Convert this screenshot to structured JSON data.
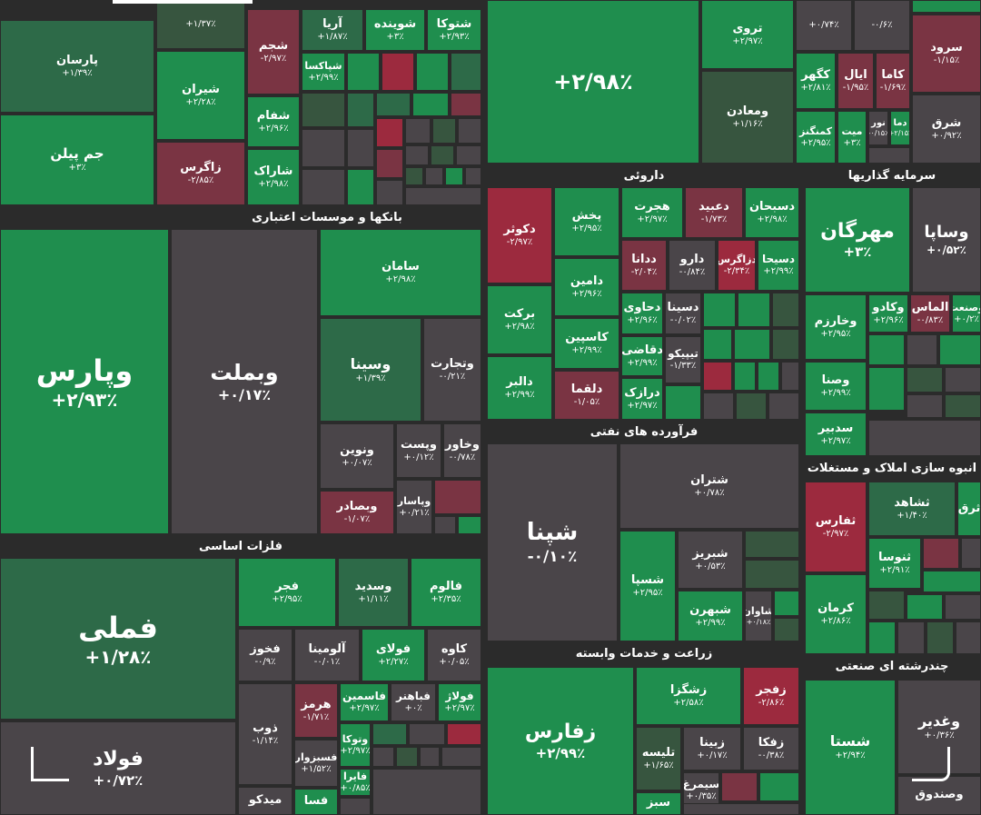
{
  "sectors": {
    "banks": "بانکها و موسسات اعتباری",
    "metals": "فلزات اساسی",
    "pharma": "داروئی",
    "oil": "فرآورده های نفتی",
    "agri": "زراعت و خدمات وابسته",
    "invest": "سرمایه گذاریها",
    "realestate": "انبوه سازی املاک و مستغلات",
    "multi": "چندرشته ای صنعتی"
  },
  "tiles": [
    {
      "name": "",
      "pct": "+۱/۳۷٪"
    },
    {
      "name": "پارسان",
      "pct": "+۱/۳۹٪"
    },
    {
      "name": "شیران",
      "pct": "+۲/۲۸٪"
    },
    {
      "name": "جم پیلن",
      "pct": "+۳٪"
    },
    {
      "name": "زاگرس",
      "pct": "-۲/۸۵٪"
    },
    {
      "name": "شجم",
      "pct": "-۲/۹۷٪"
    },
    {
      "name": "شفام",
      "pct": "+۲/۹۶٪"
    },
    {
      "name": "شاراک",
      "pct": "+۲/۹۸٪"
    },
    {
      "name": "آریا",
      "pct": "+۱/۸۷٪"
    },
    {
      "name": "شوینده",
      "pct": "+۳٪"
    },
    {
      "name": "شتوکا",
      "pct": "+۲/۹۳٪"
    },
    {
      "name": "شپاکسا",
      "pct": "+۲/۹۹٪"
    },
    {
      "name": "وپارس",
      "pct": "+۲/۹۳٪"
    },
    {
      "name": "وبملت",
      "pct": "+۰/۱۷٪"
    },
    {
      "name": "سامان",
      "pct": "+۲/۹۸٪"
    },
    {
      "name": "وسینا",
      "pct": "+۱/۳۹٪"
    },
    {
      "name": "وتجارت",
      "pct": "-۰/۲۱٪"
    },
    {
      "name": "ونوین",
      "pct": "+۰/۰۷٪"
    },
    {
      "name": "وپست",
      "pct": "+۰/۱۲٪"
    },
    {
      "name": "وخاور",
      "pct": "-۰/۷۸٪"
    },
    {
      "name": "وبصادر",
      "pct": "-۱/۰۷٪"
    },
    {
      "name": "وپاسار",
      "pct": "+۰/۲۱٪"
    },
    {
      "name": "فملی",
      "pct": "+۱/۲۸٪"
    },
    {
      "name": "فجر",
      "pct": "+۲/۹۵٪"
    },
    {
      "name": "وسدید",
      "pct": "+۱/۱۱٪"
    },
    {
      "name": "فالوم",
      "pct": "+۲/۳۵٪"
    },
    {
      "name": "فخوز",
      "pct": "-۰/۹٪"
    },
    {
      "name": "آلومینا",
      "pct": "-۰/۰۱٪"
    },
    {
      "name": "فولای",
      "pct": "+۲/۲۷٪"
    },
    {
      "name": "کاوه",
      "pct": "+۰/۰۵٪"
    },
    {
      "name": "هرمز",
      "pct": "-۱/۷۱٪"
    },
    {
      "name": "فاسمین",
      "pct": "+۲/۹۷٪"
    },
    {
      "name": "فباهنر",
      "pct": "+۰٪"
    },
    {
      "name": "فولاژ",
      "pct": "+۲/۹۷٪"
    },
    {
      "name": "فولاد",
      "pct": "+۰/۷۲٪"
    },
    {
      "name": "ذوب",
      "pct": "-۱/۱۴٪"
    },
    {
      "name": "فسبزوار",
      "pct": "+۱/۵۲٪"
    },
    {
      "name": "وتوکا",
      "pct": "+۲/۹۷٪"
    },
    {
      "name": "فایرا",
      "pct": "+۰/۸۵٪"
    },
    {
      "name": "میدکو",
      "pct": ""
    },
    {
      "name": "فسا",
      "pct": ""
    },
    {
      "name": "",
      "pct": "+۲/۹۸٪"
    },
    {
      "name": "تروی",
      "pct": "+۲/۹۷٪"
    },
    {
      "name": "ومعادن",
      "pct": "+۱/۱۶٪"
    },
    {
      "name": "",
      "pct": "+۰/۷۴٪"
    },
    {
      "name": "",
      "pct": "-۰/۶٪"
    },
    {
      "name": "سرود",
      "pct": "-۱/۱۵٪"
    },
    {
      "name": "کگهر",
      "pct": "+۲/۸۱٪"
    },
    {
      "name": "ایال",
      "pct": "-۱/۹۵٪"
    },
    {
      "name": "کاما",
      "pct": "-۱/۶۹٪"
    },
    {
      "name": "کمنگنز",
      "pct": "+۲/۹۵٪"
    },
    {
      "name": "میت",
      "pct": "+۳٪"
    },
    {
      "name": "نور",
      "pct": "-۰/۱۵٪"
    },
    {
      "name": "دما",
      "pct": "+۲/۱۵٪"
    },
    {
      "name": "شرق",
      "pct": "+۰/۹۲٪"
    },
    {
      "name": "دسبحان",
      "pct": "+۲/۹۸٪"
    },
    {
      "name": "دعبید",
      "pct": "-۱/۷۳٪"
    },
    {
      "name": "هجرت",
      "pct": "+۲/۹۷٪"
    },
    {
      "name": "پخش",
      "pct": "+۲/۹۵٪"
    },
    {
      "name": "دکوثر",
      "pct": "-۲/۹۷٪"
    },
    {
      "name": "دسیحا",
      "pct": "+۲/۹۹٪"
    },
    {
      "name": "دزاگرس",
      "pct": "-۲/۳۴٪"
    },
    {
      "name": "دارو",
      "pct": "-۰/۸۴٪"
    },
    {
      "name": "ددانا",
      "pct": "-۲/۰۴٪"
    },
    {
      "name": "دامین",
      "pct": "+۲/۹۶٪"
    },
    {
      "name": "برکت",
      "pct": "+۲/۹۸٪"
    },
    {
      "name": "دحاوی",
      "pct": "+۲/۹۶٪"
    },
    {
      "name": "دسینا",
      "pct": "-۰/۰۲٪"
    },
    {
      "name": "کاسپین",
      "pct": "+۲/۹۹٪"
    },
    {
      "name": "دقاضی",
      "pct": "+۲/۹۹٪"
    },
    {
      "name": "تیپیکو",
      "pct": "-۱/۳۳٪"
    },
    {
      "name": "دالبر",
      "pct": "+۲/۹۹٪"
    },
    {
      "name": "دلقما",
      "pct": "-۱/۰۵٪"
    },
    {
      "name": "درازک",
      "pct": "+۲/۹۷٪"
    },
    {
      "name": "شپنا",
      "pct": "-۰/۱۰٪"
    },
    {
      "name": "شتران",
      "pct": "+۰/۷۸٪"
    },
    {
      "name": "شسپا",
      "pct": "+۲/۹۵٪"
    },
    {
      "name": "شبریز",
      "pct": "+۰/۵۳٪"
    },
    {
      "name": "شبهرن",
      "pct": "+۲/۹۹٪"
    },
    {
      "name": "شاوان",
      "pct": "+۰/۱۸٪"
    },
    {
      "name": "زفارس",
      "pct": "+۲/۹۹٪"
    },
    {
      "name": "زشگزا",
      "pct": "+۲/۵۸٪"
    },
    {
      "name": "زفجر",
      "pct": "-۲/۸۶٪"
    },
    {
      "name": "تلیسه",
      "pct": "+۱/۶۵٪"
    },
    {
      "name": "زبینا",
      "pct": "+۰/۱۷٪"
    },
    {
      "name": "زفکا",
      "pct": "-۰/۳۸٪"
    },
    {
      "name": "سیمرغ",
      "pct": "+۰/۳۵٪"
    },
    {
      "name": "سبز",
      "pct": ""
    },
    {
      "name": "مهرگان",
      "pct": "+۳٪"
    },
    {
      "name": "وساپا",
      "pct": "+۰/۵۲٪"
    },
    {
      "name": "وخارزم",
      "pct": "+۲/۹۵٪"
    },
    {
      "name": "وکادو",
      "pct": "+۲/۹۶٪"
    },
    {
      "name": "الماس",
      "pct": "-۰/۸۳٪"
    },
    {
      "name": "وصنعت",
      "pct": "+۰/۲٪"
    },
    {
      "name": "وصنا",
      "pct": "+۲/۹۹٪"
    },
    {
      "name": "سدبیر",
      "pct": "+۲/۹۷٪"
    },
    {
      "name": "ثفارس",
      "pct": "-۲/۹۷٪"
    },
    {
      "name": "ثشاهد",
      "pct": "+۱/۴۰٪"
    },
    {
      "name": "ثنوسا",
      "pct": "+۲/۹۱٪"
    },
    {
      "name": "کرمان",
      "pct": "+۲/۸۶٪"
    },
    {
      "name": "ثرق",
      "pct": ""
    },
    {
      "name": "شستا",
      "pct": "+۲/۹۴٪"
    },
    {
      "name": "وغدیر",
      "pct": "+۰/۳۶٪"
    },
    {
      "name": "وصندوق",
      "pct": ""
    }
  ]
}
